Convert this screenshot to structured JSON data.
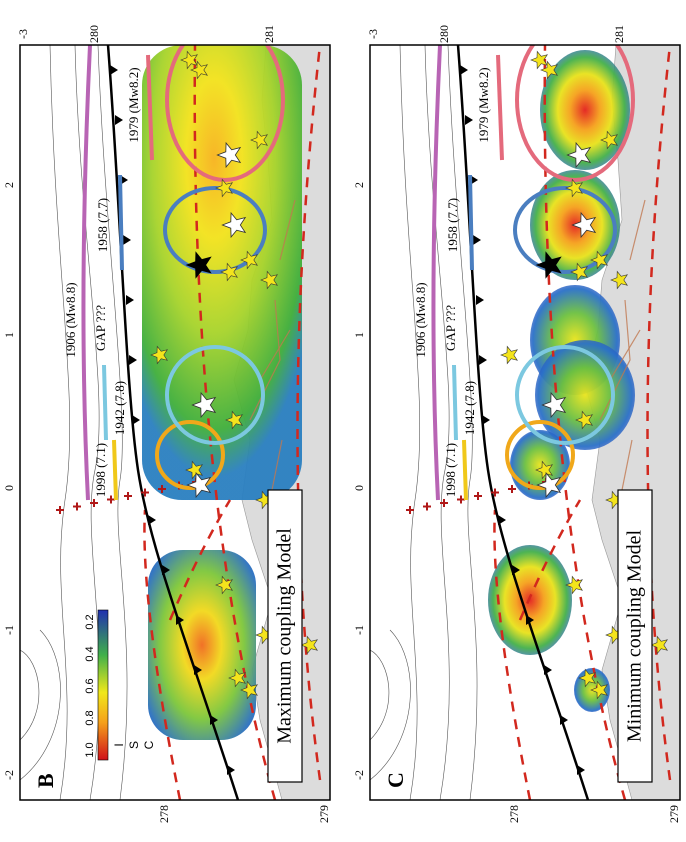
{
  "panels": [
    {
      "label": "B",
      "model": "Maximum coupling Model"
    },
    {
      "label": "C",
      "model": "Minimum coupling Model"
    }
  ],
  "ruptures": [
    "1906 (Mw8.8)",
    "GAP ???",
    "1942 (7.8)",
    "1998 (7.1)",
    "1958 (7.7)",
    "1979 (Mw8.2)"
  ],
  "colorbar": {
    "ticks": [
      "1.0",
      "0.8",
      "0.6",
      "0.4",
      "0.2"
    ],
    "letters": [
      "I",
      "S",
      "C"
    ]
  },
  "axis": {
    "left": [
      "-2",
      "-1",
      "0",
      "1",
      "2"
    ],
    "top": [
      "-3",
      "280",
      "281"
    ],
    "bottom": [
      "278",
      "279"
    ]
  }
}
